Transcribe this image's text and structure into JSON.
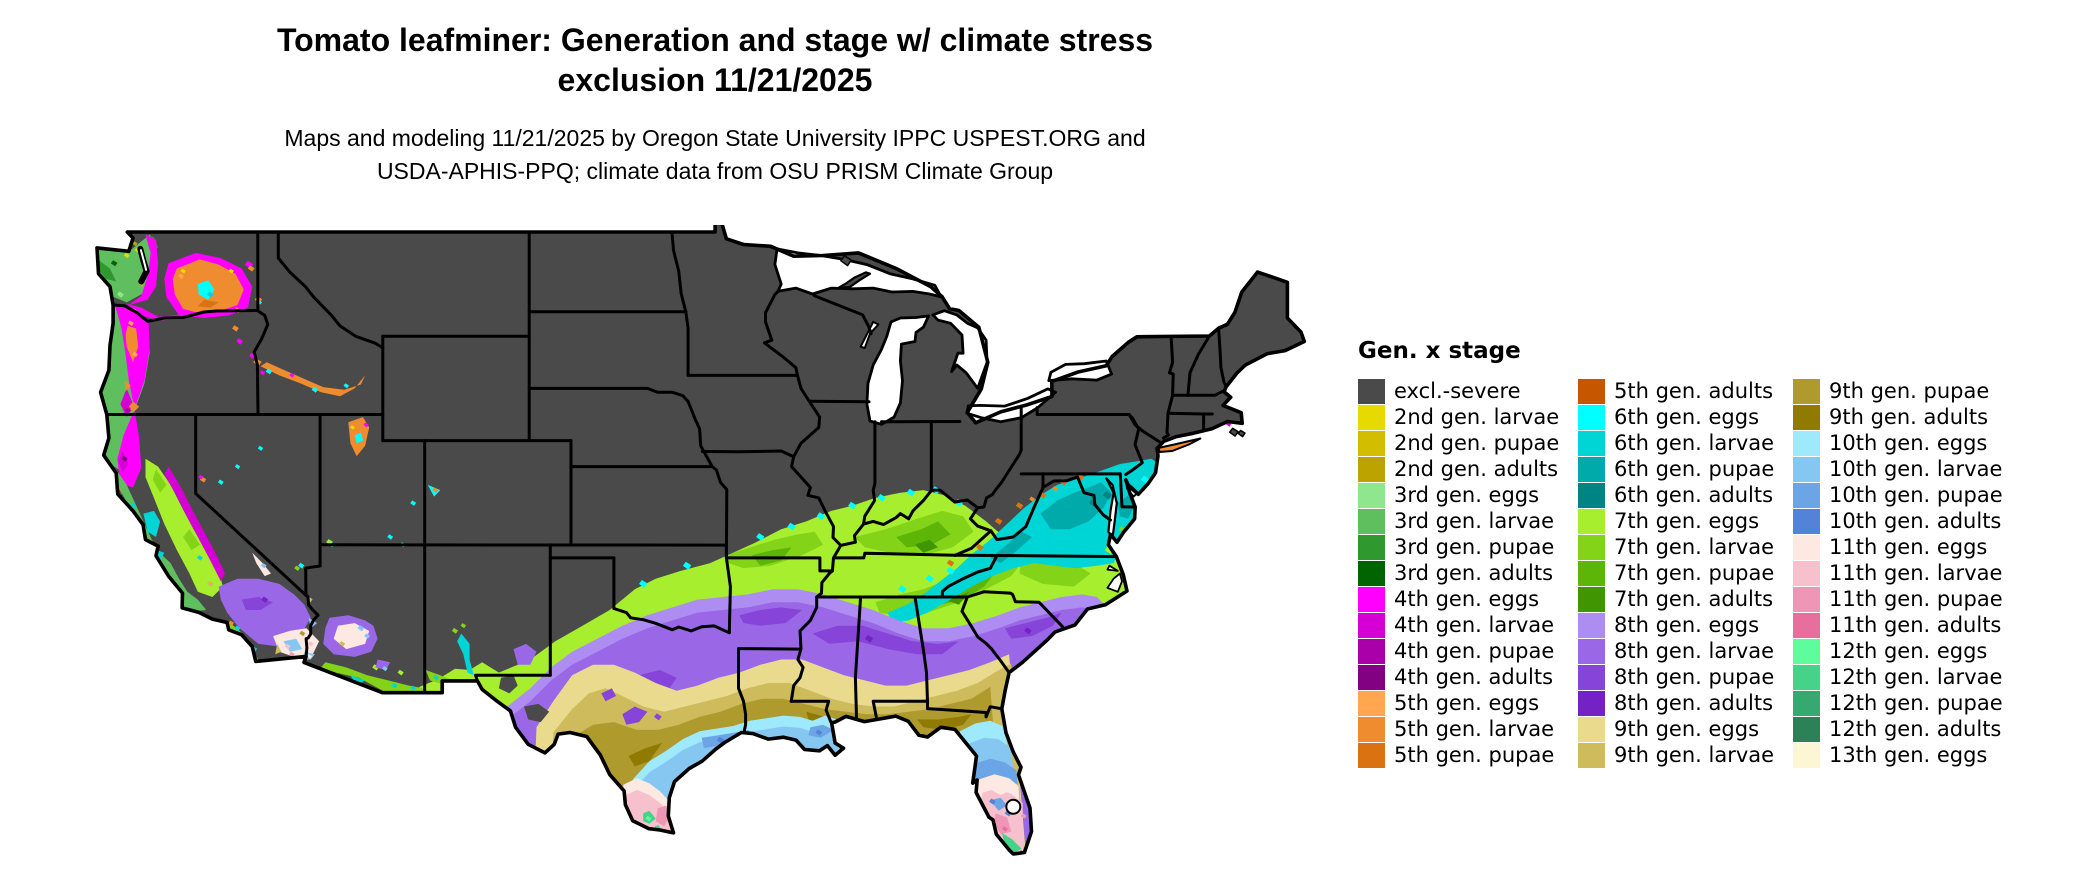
{
  "title": {
    "line1": "Tomato leafminer: Generation and stage w/ climate stress",
    "line2": "exclusion 11/21/2025"
  },
  "subtitle": {
    "line1": "Maps and modeling 11/21/2025 by Oregon State University IPPC USPEST.ORG and",
    "line2": "USDA-APHIS-PPQ; climate data from OSU PRISM Climate Group"
  },
  "legend": {
    "title": "Gen. x stage",
    "entries": [
      {
        "label": "excl.-severe",
        "color": "#4a4a4a"
      },
      {
        "label": "2nd gen. larvae",
        "color": "#e6da00"
      },
      {
        "label": "2nd gen. pupae",
        "color": "#d2bd00"
      },
      {
        "label": "2nd gen. adults",
        "color": "#bda300"
      },
      {
        "label": "3rd gen. eggs",
        "color": "#8fe68f"
      },
      {
        "label": "3rd gen. larvae",
        "color": "#5fbf5f"
      },
      {
        "label": "3rd gen. pupae",
        "color": "#2f992f"
      },
      {
        "label": "3rd gen. adults",
        "color": "#006400"
      },
      {
        "label": "4th gen. eggs",
        "color": "#ff00ff"
      },
      {
        "label": "4th gen. larvae",
        "color": "#d400d4"
      },
      {
        "label": "4th gen. pupae",
        "color": "#aa00aa"
      },
      {
        "label": "4th gen. adults",
        "color": "#820082"
      },
      {
        "label": "5th gen. eggs",
        "color": "#ffa64f"
      },
      {
        "label": "5th gen. larvae",
        "color": "#ef8c30"
      },
      {
        "label": "5th gen. pupae",
        "color": "#da7212"
      },
      {
        "label": "5th gen. adults",
        "color": "#c65700"
      },
      {
        "label": "6th gen. eggs",
        "color": "#00ffff"
      },
      {
        "label": "6th gen. larvae",
        "color": "#00d5d5"
      },
      {
        "label": "6th gen. pupae",
        "color": "#00aaaa"
      },
      {
        "label": "6th gen. adults",
        "color": "#008383"
      },
      {
        "label": "7th gen. eggs",
        "color": "#a7ef2e"
      },
      {
        "label": "7th gen. larvae",
        "color": "#83d318"
      },
      {
        "label": "7th gen. pupae",
        "color": "#5db507"
      },
      {
        "label": "7th gen. adults",
        "color": "#3f9600"
      },
      {
        "label": "8th gen. eggs",
        "color": "#ad8df2"
      },
      {
        "label": "8th gen. larvae",
        "color": "#9a68e6"
      },
      {
        "label": "8th gen. pupae",
        "color": "#8744d8"
      },
      {
        "label": "8th gen. adults",
        "color": "#7421c6"
      },
      {
        "label": "9th gen. eggs",
        "color": "#e9da8e"
      },
      {
        "label": "9th gen. larvae",
        "color": "#cdbb5c"
      },
      {
        "label": "9th gen. pupae",
        "color": "#af9a2e"
      },
      {
        "label": "9th gen. adults",
        "color": "#917a00"
      },
      {
        "label": "10th gen. eggs",
        "color": "#9fe9fd"
      },
      {
        "label": "10th gen. larvae",
        "color": "#86c7f2"
      },
      {
        "label": "10th gen. pupae",
        "color": "#6ba5e6"
      },
      {
        "label": "10th gen. adults",
        "color": "#5383d8"
      },
      {
        "label": "11th gen. eggs",
        "color": "#fde9e2"
      },
      {
        "label": "11th gen. larvae",
        "color": "#f6c0cd"
      },
      {
        "label": "11th gen. pupae",
        "color": "#ee96b6"
      },
      {
        "label": "11th gen. adults",
        "color": "#e76f9e"
      },
      {
        "label": "12th gen. eggs",
        "color": "#5dfc9d"
      },
      {
        "label": "12th gen. larvae",
        "color": "#45d387"
      },
      {
        "label": "12th gen. pupae",
        "color": "#35a96f"
      },
      {
        "label": "12th gen. adults",
        "color": "#2d8156"
      },
      {
        "label": "13th gen. eggs",
        "color": "#fcf6d4"
      }
    ]
  },
  "map": {
    "base_color": "#4a4a4a",
    "border_color": "#000000",
    "water_color": "#ffffff"
  }
}
